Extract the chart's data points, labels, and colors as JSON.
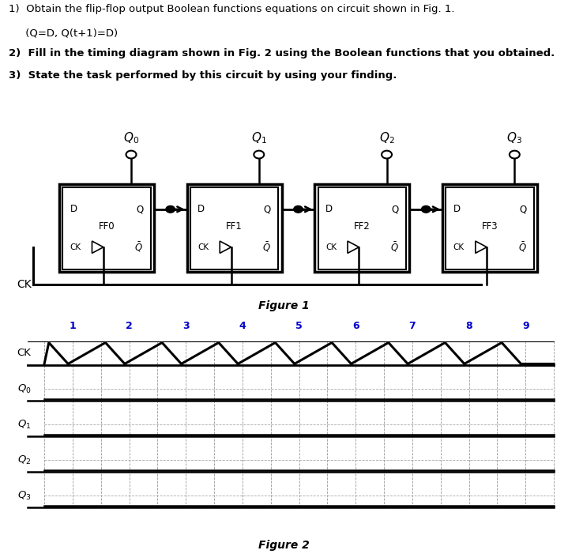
{
  "text_line1": "1)  Obtain the flip-flop output Boolean functions equations on circuit shown in Fig. 1.",
  "text_line1b": "     (Q=D, Q(t+1)=D)",
  "text_line2": "2)  Fill in the timing diagram shown in Fig. 2 using the Boolean functions that you obtained.",
  "text_line3": "3)  State the task performed by this circuit by using your finding.",
  "fig1_label": "Figure 1",
  "fig2_label": "Figure 2",
  "ff_labels": [
    "FF0",
    "FF1",
    "FF2",
    "FF3"
  ],
  "timing_clock_pulses": [
    1,
    2,
    3,
    4,
    5,
    6,
    7,
    8,
    9
  ],
  "bg_color": "#ffffff",
  "text_color": "#000000",
  "number_color": "#0000cc"
}
